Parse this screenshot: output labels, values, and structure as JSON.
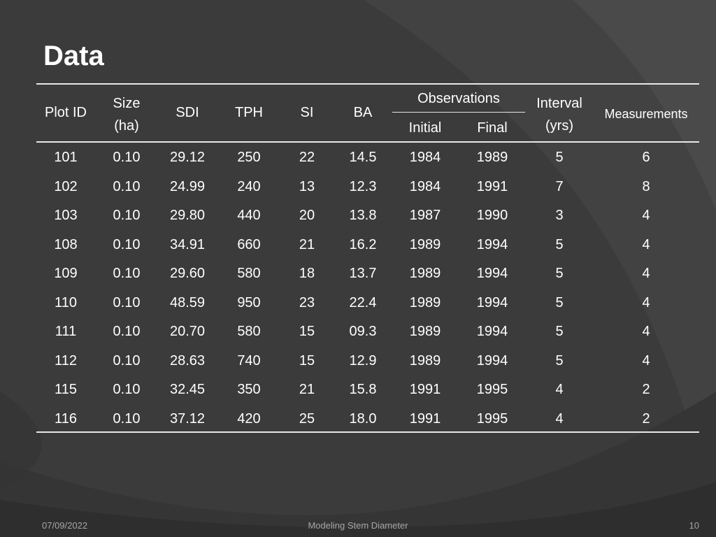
{
  "slide": {
    "title": "Data",
    "footer": {
      "date": "07/09/2022",
      "center": "Modeling Stem Diameter",
      "page": "10"
    }
  },
  "table": {
    "headers": {
      "plot_id": "Plot ID",
      "size": "Size",
      "size_unit": "(ha)",
      "sdi": "SDI",
      "tph": "TPH",
      "si": "SI",
      "ba": "BA",
      "observations": "Observations",
      "initial": "Initial",
      "final": "Final",
      "interval": "Interval",
      "interval_unit": "(yrs)",
      "measurements": "Measurements"
    },
    "rows": [
      [
        "101",
        "0.10",
        "29.12",
        "250",
        "22",
        "14.5",
        "1984",
        "1989",
        "5",
        "6"
      ],
      [
        "102",
        "0.10",
        "24.99",
        "240",
        "13",
        "12.3",
        "1984",
        "1991",
        "7",
        "8"
      ],
      [
        "103",
        "0.10",
        "29.80",
        "440",
        "20",
        "13.8",
        "1987",
        "1990",
        "3",
        "4"
      ],
      [
        "108",
        "0.10",
        "34.91",
        "660",
        "21",
        "16.2",
        "1989",
        "1994",
        "5",
        "4"
      ],
      [
        "109",
        "0.10",
        "29.60",
        "580",
        "18",
        "13.7",
        "1989",
        "1994",
        "5",
        "4"
      ],
      [
        "110",
        "0.10",
        "48.59",
        "950",
        "23",
        "22.4",
        "1989",
        "1994",
        "5",
        "4"
      ],
      [
        "111",
        "0.10",
        "20.70",
        "580",
        "15",
        "09.3",
        "1989",
        "1994",
        "5",
        "4"
      ],
      [
        "112",
        "0.10",
        "28.63",
        "740",
        "15",
        "12.9",
        "1989",
        "1994",
        "5",
        "4"
      ],
      [
        "115",
        "0.10",
        "32.45",
        "350",
        "21",
        "15.8",
        "1991",
        "1995",
        "4",
        "2"
      ],
      [
        "116",
        "0.10",
        "37.12",
        "420",
        "25",
        "18.0",
        "1991",
        "1995",
        "4",
        "2"
      ]
    ]
  }
}
